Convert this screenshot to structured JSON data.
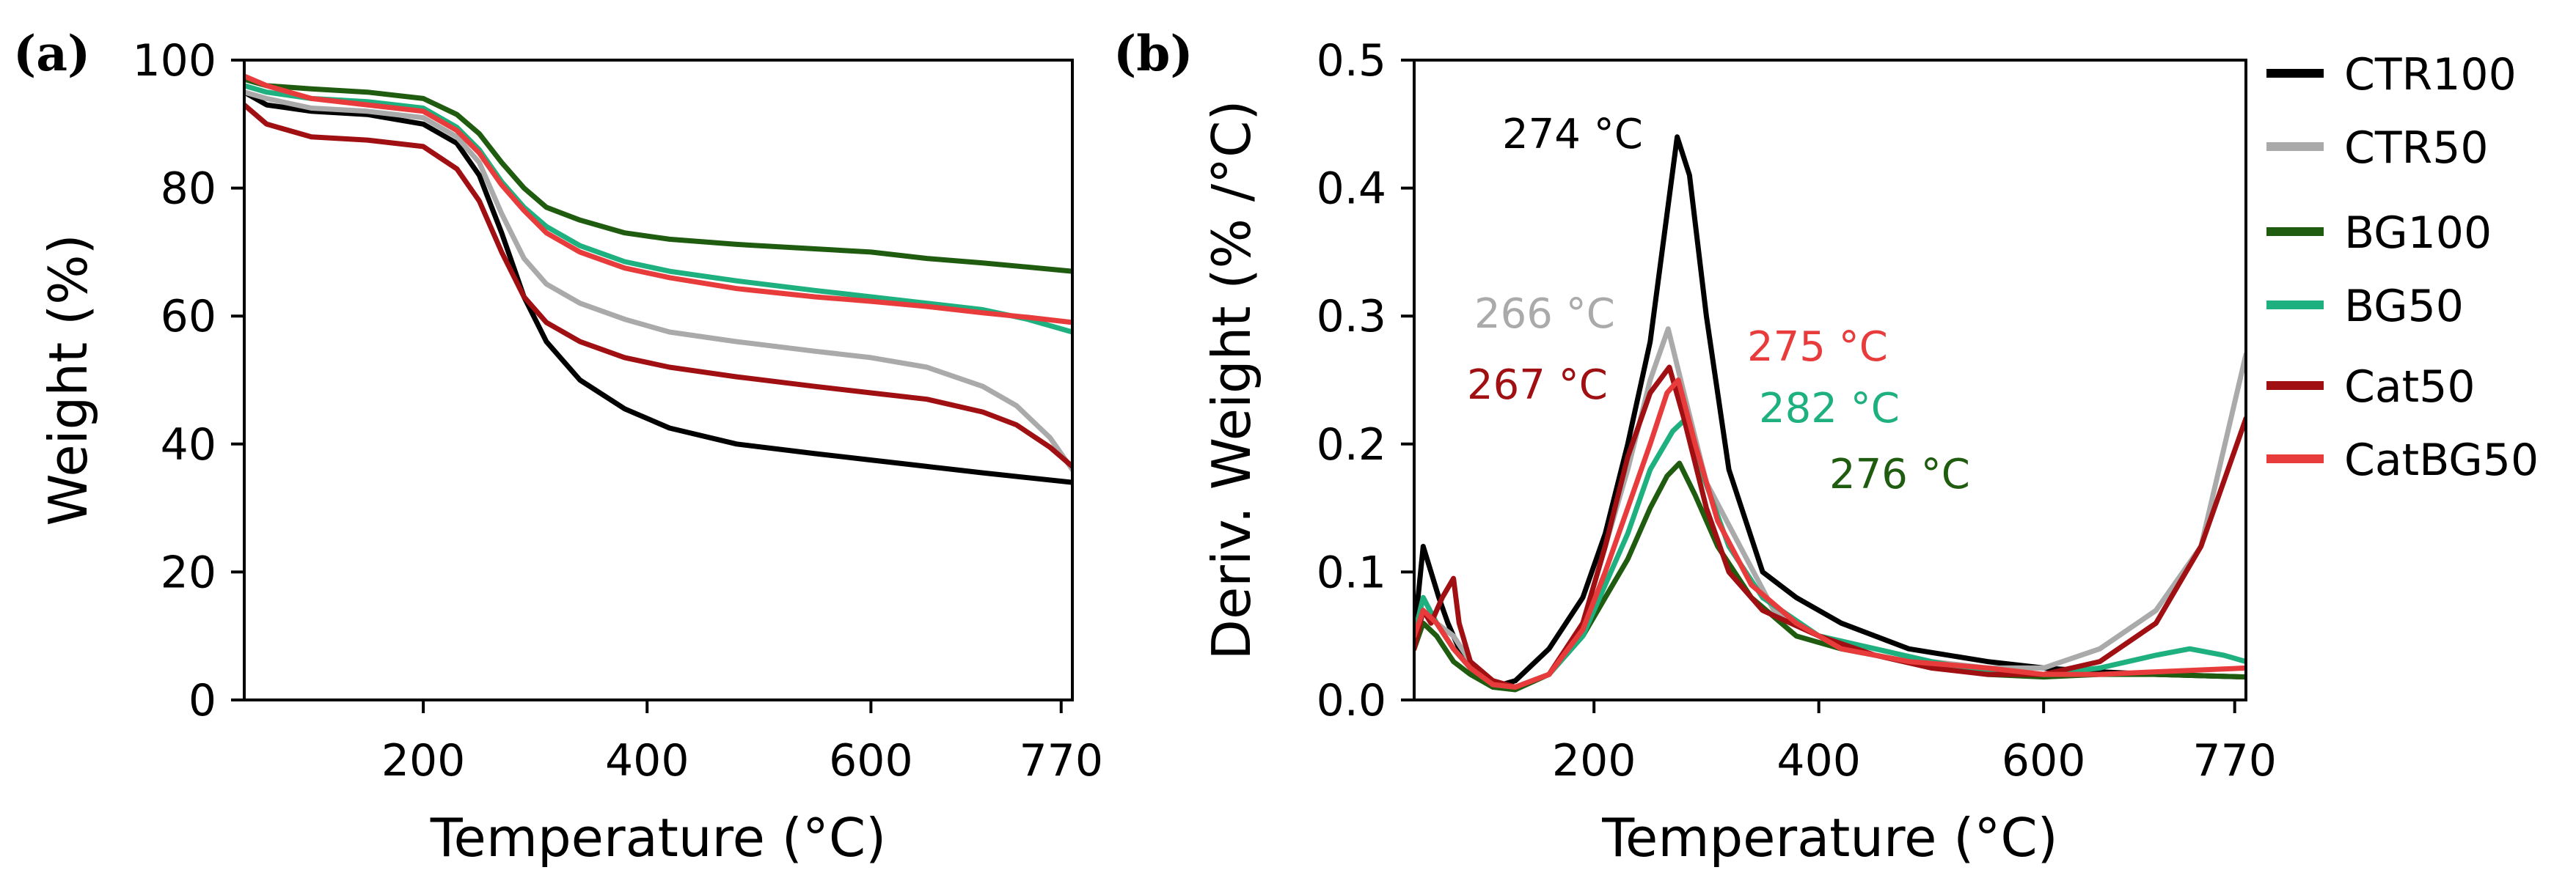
{
  "colors": {
    "CTR100": "#000000",
    "CTR50": "#aaaaaa",
    "BG100": "#1f5c0f",
    "BG50": "#1fb07f",
    "Cat50": "#a00f12",
    "CatBG50": "#e83c3c"
  },
  "chart_data": [
    {
      "id": "a",
      "panel_label": "(a)",
      "type": "line",
      "xlabel": "Temperature (°C)",
      "ylabel": "Weight (%)",
      "xlim": [
        40,
        780
      ],
      "ylim": [
        0,
        100
      ],
      "xticks": [
        200,
        400,
        600,
        770
      ],
      "xtick_labels": [
        "200",
        "400",
        "600",
        "770"
      ],
      "yticks": [
        0,
        20,
        40,
        60,
        80,
        100
      ],
      "ytick_labels": [
        "0",
        "20",
        "40",
        "60",
        "80",
        "100"
      ],
      "series": [
        {
          "name": "CTR100",
          "x": [
            40,
            60,
            100,
            150,
            200,
            230,
            250,
            270,
            290,
            310,
            340,
            380,
            420,
            480,
            550,
            600,
            650,
            700,
            780
          ],
          "y": [
            95,
            93,
            92,
            91.5,
            90,
            87,
            82,
            73,
            63,
            56,
            50,
            45.5,
            42.5,
            40,
            38.5,
            37.5,
            36.5,
            35.5,
            34
          ]
        },
        {
          "name": "CTR50",
          "x": [
            40,
            60,
            100,
            150,
            200,
            230,
            250,
            270,
            290,
            310,
            340,
            380,
            420,
            480,
            550,
            600,
            650,
            700,
            730,
            760,
            780
          ],
          "y": [
            95,
            94,
            92.5,
            92,
            91,
            88,
            84,
            76,
            69,
            65,
            62,
            59.5,
            57.5,
            56,
            54.5,
            53.5,
            52,
            49,
            46,
            41,
            36
          ]
        },
        {
          "name": "BG100",
          "x": [
            40,
            60,
            100,
            150,
            200,
            230,
            250,
            270,
            290,
            310,
            340,
            380,
            420,
            480,
            550,
            600,
            650,
            700,
            780
          ],
          "y": [
            97,
            96,
            95.5,
            95,
            94,
            91.5,
            88.5,
            84,
            80,
            77,
            75,
            73,
            72,
            71.2,
            70.5,
            70,
            69,
            68.3,
            67
          ]
        },
        {
          "name": "BG50",
          "x": [
            40,
            60,
            100,
            150,
            200,
            230,
            250,
            270,
            290,
            310,
            340,
            380,
            420,
            480,
            550,
            600,
            650,
            700,
            740,
            780
          ],
          "y": [
            96,
            95,
            94,
            93.5,
            92.5,
            89.5,
            86,
            81,
            77,
            74,
            71,
            68.5,
            67,
            65.5,
            64,
            63,
            62,
            61,
            59.5,
            57.5
          ]
        },
        {
          "name": "Cat50",
          "x": [
            40,
            60,
            100,
            150,
            200,
            230,
            250,
            270,
            290,
            310,
            340,
            380,
            420,
            480,
            550,
            600,
            650,
            700,
            730,
            760,
            780
          ],
          "y": [
            93,
            90,
            88,
            87.5,
            86.5,
            83,
            78,
            70,
            63,
            59,
            56,
            53.5,
            52,
            50.5,
            49,
            48,
            47,
            45,
            43,
            39.5,
            36.5
          ]
        },
        {
          "name": "CatBG50",
          "x": [
            40,
            60,
            100,
            150,
            200,
            230,
            250,
            270,
            290,
            310,
            340,
            380,
            420,
            480,
            550,
            600,
            650,
            700,
            740,
            780
          ],
          "y": [
            97.5,
            96,
            94,
            93,
            92,
            89,
            85.5,
            80.5,
            76.5,
            73,
            70,
            67.5,
            66,
            64.3,
            63,
            62.3,
            61.5,
            60.5,
            59.8,
            59
          ]
        }
      ]
    },
    {
      "id": "b",
      "panel_label": "(b)",
      "type": "line",
      "xlabel": "Temperature (°C)",
      "ylabel": "Deriv. Weight (% /°C)",
      "xlim": [
        40,
        780
      ],
      "ylim": [
        0,
        0.5
      ],
      "xticks": [
        200,
        400,
        600,
        770
      ],
      "xtick_labels": [
        "200",
        "400",
        "600",
        "770"
      ],
      "yticks": [
        0,
        0.1,
        0.2,
        0.3,
        0.4,
        0.5
      ],
      "ytick_labels": [
        "0.0",
        "0.1",
        "0.2",
        "0.3",
        "0.4",
        "0.5"
      ],
      "legend_position": "right",
      "series": [
        {
          "name": "CTR100",
          "x": [
            40,
            48,
            55,
            62,
            70,
            80,
            90,
            110,
            130,
            160,
            190,
            210,
            230,
            250,
            265,
            274,
            285,
            300,
            320,
            350,
            380,
            420,
            480,
            550,
            600,
            650,
            700,
            780
          ],
          "y": [
            0.05,
            0.12,
            0.1,
            0.08,
            0.06,
            0.04,
            0.025,
            0.01,
            0.015,
            0.04,
            0.08,
            0.13,
            0.2,
            0.28,
            0.38,
            0.44,
            0.41,
            0.3,
            0.18,
            0.1,
            0.08,
            0.06,
            0.04,
            0.03,
            0.025,
            0.022,
            0.02,
            0.018
          ]
        },
        {
          "name": "CTR50",
          "x": [
            40,
            48,
            60,
            75,
            90,
            110,
            130,
            160,
            190,
            210,
            230,
            250,
            266,
            280,
            300,
            330,
            360,
            400,
            450,
            500,
            550,
            600,
            650,
            700,
            740,
            780
          ],
          "y": [
            0.05,
            0.08,
            0.06,
            0.05,
            0.03,
            0.015,
            0.01,
            0.02,
            0.06,
            0.12,
            0.18,
            0.25,
            0.29,
            0.24,
            0.17,
            0.12,
            0.07,
            0.05,
            0.04,
            0.03,
            0.025,
            0.025,
            0.04,
            0.07,
            0.12,
            0.27
          ]
        },
        {
          "name": "BG100",
          "x": [
            40,
            48,
            60,
            75,
            90,
            110,
            130,
            160,
            190,
            210,
            230,
            250,
            265,
            276,
            290,
            310,
            340,
            380,
            420,
            480,
            550,
            600,
            650,
            700,
            780
          ],
          "y": [
            0.04,
            0.06,
            0.05,
            0.03,
            0.02,
            0.01,
            0.008,
            0.02,
            0.05,
            0.08,
            0.11,
            0.15,
            0.175,
            0.185,
            0.16,
            0.12,
            0.08,
            0.05,
            0.04,
            0.03,
            0.02,
            0.018,
            0.02,
            0.02,
            0.018
          ]
        },
        {
          "name": "BG50",
          "x": [
            40,
            48,
            60,
            75,
            90,
            110,
            130,
            160,
            190,
            210,
            230,
            250,
            270,
            282,
            295,
            320,
            350,
            400,
            450,
            500,
            550,
            600,
            650,
            700,
            730,
            760,
            780
          ],
          "y": [
            0.05,
            0.08,
            0.06,
            0.04,
            0.025,
            0.012,
            0.01,
            0.02,
            0.05,
            0.09,
            0.13,
            0.18,
            0.21,
            0.22,
            0.18,
            0.12,
            0.08,
            0.05,
            0.04,
            0.03,
            0.022,
            0.02,
            0.025,
            0.035,
            0.04,
            0.035,
            0.03
          ]
        },
        {
          "name": "Cat50",
          "x": [
            40,
            48,
            55,
            65,
            75,
            80,
            90,
            110,
            130,
            160,
            190,
            210,
            230,
            250,
            267,
            280,
            300,
            320,
            350,
            400,
            450,
            500,
            550,
            600,
            650,
            700,
            740,
            780
          ],
          "y": [
            0.04,
            0.07,
            0.06,
            0.08,
            0.095,
            0.06,
            0.03,
            0.015,
            0.01,
            0.02,
            0.06,
            0.12,
            0.19,
            0.24,
            0.26,
            0.22,
            0.15,
            0.1,
            0.07,
            0.05,
            0.035,
            0.025,
            0.02,
            0.02,
            0.03,
            0.06,
            0.12,
            0.22
          ]
        },
        {
          "name": "CatBG50",
          "x": [
            40,
            48,
            60,
            75,
            90,
            110,
            130,
            160,
            190,
            210,
            230,
            250,
            265,
            275,
            290,
            310,
            340,
            380,
            420,
            480,
            550,
            600,
            650,
            700,
            780
          ],
          "y": [
            0.05,
            0.07,
            0.06,
            0.04,
            0.025,
            0.012,
            0.01,
            0.02,
            0.055,
            0.1,
            0.15,
            0.2,
            0.24,
            0.25,
            0.2,
            0.14,
            0.09,
            0.06,
            0.04,
            0.03,
            0.025,
            0.02,
            0.02,
            0.022,
            0.025
          ]
        }
      ],
      "annotations": [
        {
          "text": "274 °C",
          "series": "CTR100"
        },
        {
          "text": "266 °C",
          "series": "CTR50"
        },
        {
          "text": "267 °C",
          "series": "Cat50"
        },
        {
          "text": "275 °C",
          "series": "CatBG50"
        },
        {
          "text": "282 °C",
          "series": "BG50"
        },
        {
          "text": "276 °C",
          "series": "BG100"
        }
      ]
    }
  ]
}
